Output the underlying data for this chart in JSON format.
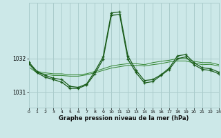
{
  "background_color": "#cce8e8",
  "grid_color": "#aacccc",
  "line_color_dark": "#1a5c1a",
  "line_color_light": "#3a8a3a",
  "xlabel": "Graphe pression niveau de la mer (hPa)",
  "xmin": 0,
  "xmax": 23,
  "ymin": 1030.55,
  "ymax": 1033.65,
  "yticks": [
    1031,
    1032
  ],
  "xticks": [
    0,
    1,
    2,
    3,
    4,
    5,
    6,
    7,
    8,
    9,
    10,
    11,
    12,
    13,
    14,
    15,
    16,
    17,
    18,
    19,
    20,
    21,
    22,
    23
  ],
  "series_A_x": [
    0,
    1,
    2,
    3,
    4,
    5,
    6,
    7,
    8,
    9,
    10,
    11,
    12,
    13,
    14,
    15,
    16,
    17,
    18,
    19,
    20,
    21,
    22,
    23
  ],
  "series_A_y": [
    1031.85,
    1031.62,
    1031.58,
    1031.55,
    1031.55,
    1031.52,
    1031.52,
    1031.55,
    1031.62,
    1031.7,
    1031.78,
    1031.82,
    1031.85,
    1031.85,
    1031.82,
    1031.88,
    1031.92,
    1031.95,
    1032.0,
    1032.0,
    1031.92,
    1031.88,
    1031.88,
    1031.82
  ],
  "series_B_x": [
    0,
    1,
    2,
    3,
    4,
    5,
    6,
    7,
    8,
    9,
    10,
    11,
    12,
    13,
    14,
    15,
    16,
    17,
    18,
    19,
    20,
    21,
    22,
    23
  ],
  "series_B_y": [
    1031.75,
    1031.58,
    1031.54,
    1031.5,
    1031.5,
    1031.48,
    1031.48,
    1031.52,
    1031.58,
    1031.65,
    1031.72,
    1031.76,
    1031.8,
    1031.8,
    1031.78,
    1031.82,
    1031.85,
    1031.9,
    1031.93,
    1031.93,
    1031.87,
    1031.82,
    1031.83,
    1031.78
  ],
  "series_C_x": [
    0,
    1,
    2,
    3,
    4,
    5,
    6,
    7,
    8,
    9,
    10,
    11,
    12,
    13,
    14,
    15,
    16,
    17,
    18,
    19,
    20,
    21,
    22,
    23
  ],
  "series_C_y": [
    1031.9,
    1031.62,
    1031.5,
    1031.42,
    1031.38,
    1031.18,
    1031.15,
    1031.25,
    1031.62,
    1032.05,
    1033.35,
    1033.38,
    1032.08,
    1031.65,
    1031.35,
    1031.38,
    1031.52,
    1031.72,
    1032.08,
    1032.12,
    1031.88,
    1031.73,
    1031.7,
    1031.6
  ],
  "series_D_x": [
    0,
    1,
    2,
    3,
    4,
    5,
    6,
    7,
    8,
    9,
    10,
    11,
    12,
    13,
    14,
    15,
    16,
    17,
    18,
    19,
    20,
    21,
    22,
    23
  ],
  "series_D_y": [
    1031.85,
    1031.58,
    1031.45,
    1031.38,
    1031.3,
    1031.12,
    1031.12,
    1031.22,
    1031.55,
    1031.98,
    1033.28,
    1033.3,
    1031.98,
    1031.58,
    1031.28,
    1031.32,
    1031.5,
    1031.68,
    1032.0,
    1032.05,
    1031.82,
    1031.68,
    1031.65,
    1031.55
  ]
}
